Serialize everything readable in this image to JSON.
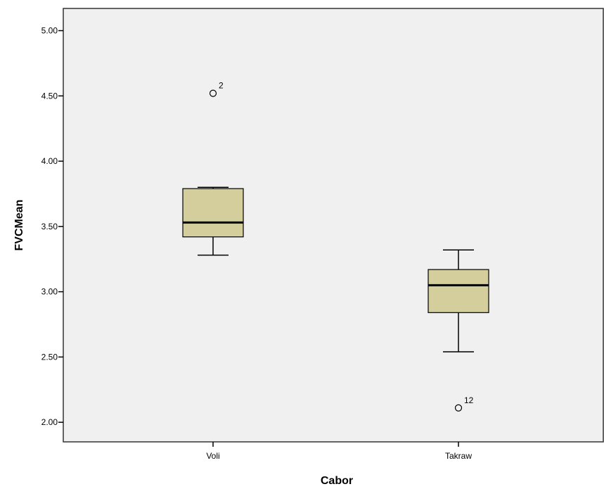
{
  "chart_data": {
    "type": "boxplot",
    "xlabel": "Cabor",
    "ylabel": "FVCMean",
    "ylim": [
      1.85,
      5.17
    ],
    "yticks": [
      "2.00",
      "2.50",
      "3.00",
      "3.50",
      "4.00",
      "4.50",
      "5.00"
    ],
    "ytick_values": [
      2.0,
      2.5,
      3.0,
      3.5,
      4.0,
      4.5,
      5.0
    ],
    "categories": [
      "Voli",
      "Takraw"
    ],
    "boxes": [
      {
        "category": "Voli",
        "whisker_low": 3.28,
        "q1": 3.42,
        "median": 3.53,
        "q3": 3.79,
        "whisker_high": 3.8,
        "outliers": [
          {
            "value": 4.52,
            "label": "2"
          }
        ]
      },
      {
        "category": "Takraw",
        "whisker_low": 2.54,
        "q1": 2.84,
        "median": 3.05,
        "q3": 3.17,
        "whisker_high": 3.32,
        "outliers": [
          {
            "value": 2.11,
            "label": "12"
          }
        ]
      }
    ],
    "grid": false,
    "colors": {
      "plot_bg": "#f0f0f0",
      "box_fill": "#d3ce9c",
      "stroke": "#000000"
    }
  }
}
